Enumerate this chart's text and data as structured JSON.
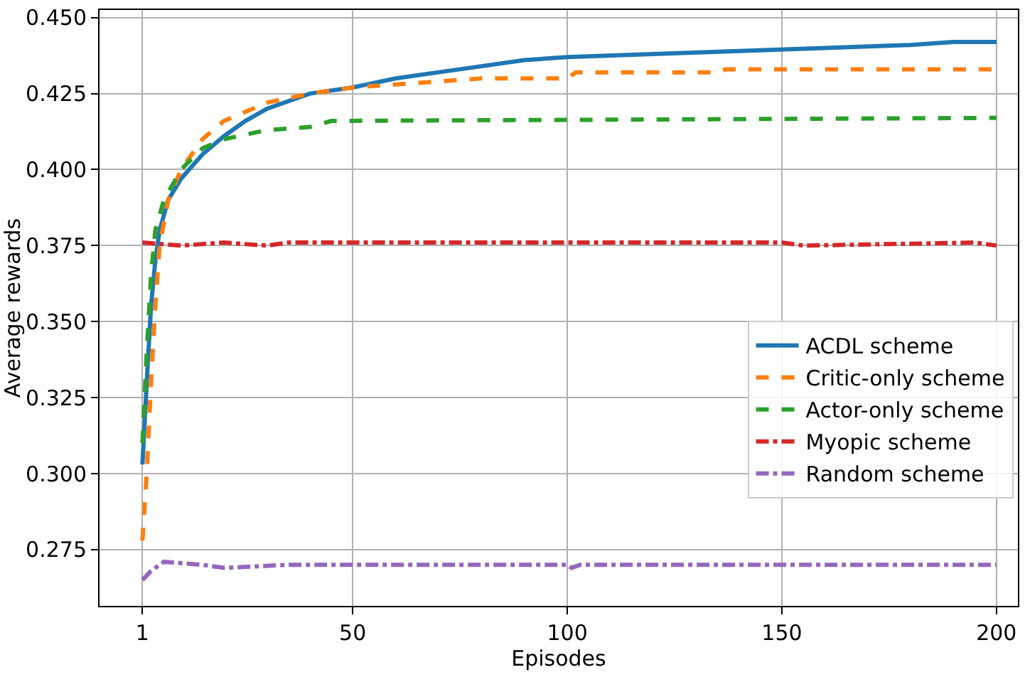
{
  "chart_data": {
    "type": "line",
    "xlabel": "Episodes",
    "ylabel": "Average rewards",
    "xlim": [
      -9,
      205
    ],
    "ylim": [
      0.2565,
      0.4525
    ],
    "xticks": [
      1,
      50,
      100,
      150,
      200
    ],
    "yticks": [
      {
        "value": 0.275,
        "label": "0.275"
      },
      {
        "value": 0.3,
        "label": "0.300"
      },
      {
        "value": 0.325,
        "label": "0.325"
      },
      {
        "value": 0.35,
        "label": "0.350"
      },
      {
        "value": 0.375,
        "label": "0.375"
      },
      {
        "value": 0.4,
        "label": "0.400"
      },
      {
        "value": 0.425,
        "label": "0.425"
      },
      {
        "value": 0.45,
        "label": "0.450"
      }
    ],
    "grid": true,
    "legend": "bottom right",
    "marker": "none",
    "series": [
      {
        "name": "ACDL scheme",
        "color": "#1f77b4",
        "line_style": "solid",
        "x": [
          1,
          2,
          3,
          4,
          5,
          7,
          10,
          15,
          20,
          25,
          30,
          40,
          50,
          60,
          70,
          80,
          90,
          100,
          120,
          140,
          160,
          180,
          190,
          200
        ],
        "values": [
          0.303,
          0.33,
          0.355,
          0.37,
          0.38,
          0.39,
          0.397,
          0.405,
          0.411,
          0.416,
          0.42,
          0.425,
          0.427,
          0.43,
          0.432,
          0.434,
          0.436,
          0.437,
          0.438,
          0.439,
          0.44,
          0.441,
          0.442,
          0.442
        ]
      },
      {
        "name": "Critic-only scheme",
        "color": "#ff7f0e",
        "line_style": "dashed",
        "x": [
          1,
          2,
          3,
          4,
          5,
          7,
          10,
          15,
          20,
          30,
          40,
          50,
          60,
          80,
          100,
          102,
          135,
          137,
          200
        ],
        "values": [
          0.278,
          0.3,
          0.33,
          0.355,
          0.375,
          0.39,
          0.4,
          0.41,
          0.416,
          0.422,
          0.425,
          0.427,
          0.428,
          0.43,
          0.43,
          0.432,
          0.432,
          0.433,
          0.433
        ]
      },
      {
        "name": "Actor-only scheme",
        "color": "#2ca02c",
        "line_style": "dashed",
        "x": [
          1,
          2,
          3,
          4,
          6,
          10,
          15,
          20,
          30,
          40,
          45,
          200
        ],
        "values": [
          0.31,
          0.34,
          0.365,
          0.38,
          0.39,
          0.4,
          0.407,
          0.41,
          0.413,
          0.414,
          0.416,
          0.417
        ]
      },
      {
        "name": "Myopic scheme",
        "color": "#d62728",
        "line_style": "dashdot",
        "x": [
          1,
          10,
          20,
          30,
          35,
          100,
          150,
          155,
          195,
          200
        ],
        "values": [
          0.376,
          0.375,
          0.376,
          0.375,
          0.376,
          0.376,
          0.376,
          0.375,
          0.376,
          0.375
        ]
      },
      {
        "name": "Random scheme",
        "color": "#9467bd",
        "line_style": "dashdot",
        "x": [
          1,
          3,
          6,
          15,
          20,
          35,
          100,
          101,
          103,
          200
        ],
        "values": [
          0.265,
          0.268,
          0.271,
          0.27,
          0.269,
          0.27,
          0.27,
          0.269,
          0.27,
          0.27
        ]
      }
    ]
  }
}
